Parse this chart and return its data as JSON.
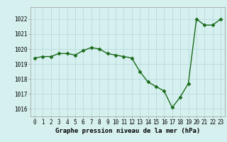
{
  "x": [
    0,
    1,
    2,
    3,
    4,
    5,
    6,
    7,
    8,
    9,
    10,
    11,
    12,
    13,
    14,
    15,
    16,
    17,
    18,
    19,
    20,
    21,
    22,
    23
  ],
  "y": [
    1019.4,
    1019.5,
    1019.5,
    1019.7,
    1019.7,
    1019.6,
    1019.9,
    1020.1,
    1020.0,
    1019.7,
    1019.6,
    1019.5,
    1019.4,
    1018.5,
    1017.8,
    1017.5,
    1017.2,
    1016.1,
    1016.8,
    1017.7,
    1022.0,
    1021.6,
    1021.6,
    1022.0
  ],
  "line_color": "#1a6b1a",
  "marker": "D",
  "marker_size": 2.5,
  "bg_color": "#d6f0f0",
  "grid_color": "#b8dada",
  "xlabel": "Graphe pression niveau de la mer (hPa)",
  "xtick_labels": [
    "0",
    "1",
    "2",
    "3",
    "4",
    "5",
    "6",
    "7",
    "8",
    "9",
    "10",
    "11",
    "12",
    "13",
    "14",
    "15",
    "16",
    "17",
    "18",
    "19",
    "20",
    "21",
    "22",
    "23"
  ],
  "ytick_values": [
    1016,
    1017,
    1018,
    1019,
    1020,
    1021,
    1022
  ],
  "ylim": [
    1015.5,
    1022.8
  ],
  "xlim": [
    -0.5,
    23.5
  ],
  "tick_fontsize": 5.5,
  "xlabel_fontsize": 6.5,
  "linewidth": 1.0
}
